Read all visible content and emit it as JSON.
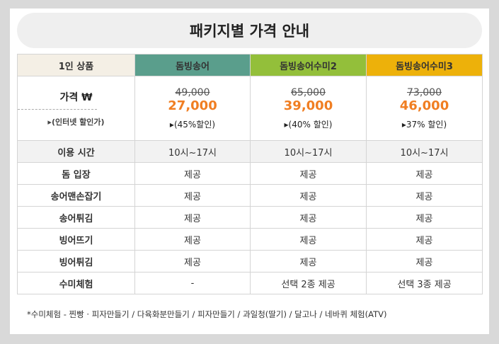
{
  "title": "패키지별 가격 안내",
  "headers": [
    "1인 상품",
    "돔빙송어",
    "돔빙송어수미2",
    "돔빙송어수미3"
  ],
  "colors": {
    "header_label_bg": "#f4efe5",
    "header_label_text": "#ef8a2a",
    "header_1": "#5a9e8c",
    "header_2": "#93bf3a",
    "header_3": "#edb10a",
    "sale_price": "#f07e22"
  },
  "price_row": {
    "label": "가격 ₩",
    "sub_label": "▸(인터넷 할인가)",
    "packages": [
      {
        "original": "49,000",
        "sale": "27,000",
        "discount": "▸(45%할인)"
      },
      {
        "original": "65,000",
        "sale": "39,000",
        "discount": "▸(40% 할인)"
      },
      {
        "original": "73,000",
        "sale": "46,000",
        "discount": "▸37% 할인)"
      }
    ]
  },
  "rows": [
    {
      "label": "이용 시간",
      "values": [
        "10시~17시",
        "10시~17시",
        "10시~17시"
      ]
    },
    {
      "label": "돔 입장",
      "values": [
        "제공",
        "제공",
        "제공"
      ]
    },
    {
      "label": "송어맨손잡기",
      "values": [
        "제공",
        "제공",
        "제공"
      ]
    },
    {
      "label": "송어튀김",
      "values": [
        "제공",
        "제공",
        "제공"
      ]
    },
    {
      "label": "빙어뜨기",
      "values": [
        "제공",
        "제공",
        "제공"
      ]
    },
    {
      "label": "빙어튀김",
      "values": [
        "제공",
        "제공",
        "제공"
      ]
    },
    {
      "label": "수미체험",
      "values": [
        "-",
        "선택 2종 제공",
        "선택 3종 제공"
      ]
    }
  ],
  "footnote": "*수미체험 - 찐빵 · 피자만들기 / 다육화분만들기 / 피자만들기 / 과일청(딸기) / 달고나 / 네바퀴 체험(ATV)"
}
